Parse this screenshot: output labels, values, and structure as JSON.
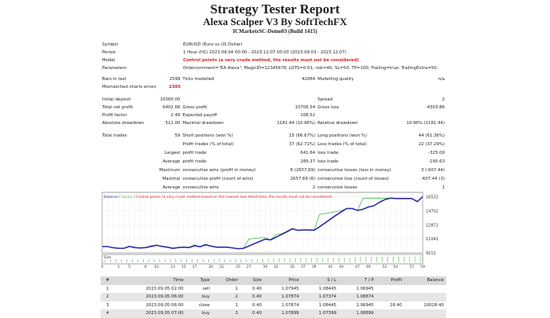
{
  "header": {
    "title": "Strategy Tester Report",
    "subtitle": "Alexa Scalper V3 By SoftTechFX",
    "server": "ICMarketsSC-Demo03 (Build 1415)"
  },
  "info": {
    "symbol_label": "Symbol",
    "symbol": "EURUSD (Euro vs US Dollar)",
    "period_label": "Period",
    "period": "1 Hour (H1) 2023.09.04 00:00 - 2023.12.07 00:00 (2023.09.03 - 2023.12.07)",
    "model_label": "Model",
    "model": "Control points (a very crude method, the results must not be considered)",
    "params_label": "Parameters",
    "params": "Ordercomment=\"EA Alexa\"; MagicID=12345678; LOTS=0.01; risk=40; SL=50; TP=100; Trailing=true; TrailingExtra=50;",
    "bars_label": "Bars in test",
    "bars": "2599",
    "ticks_label": "Ticks modelled",
    "ticks": "42064",
    "quality_label": "Modelling quality",
    "quality": "n/a",
    "mismatch_label": "Mismatched charts errors",
    "mismatch": "2385"
  },
  "stats": [
    [
      "Initial deposit",
      "10000.00",
      "",
      "",
      "Spread",
      "2"
    ],
    [
      "Total net profit",
      "6402.68",
      "Gross profit",
      "10706.54",
      "Gross loss",
      "-4303.86"
    ],
    [
      "Profit factor",
      "2.49",
      "Expected payoff",
      "108.52",
      "",
      ""
    ],
    [
      "Absolute drawdown",
      "512.00",
      "Maximal drawdown",
      "1181.44 (10.96%)",
      "Relative drawdown",
      "10.96% (1181.44)"
    ],
    [
      "Total trades",
      "59",
      "Short positions (won %)",
      "15 (66.67%)",
      "Long positions (won %)",
      "44 (61.36%)"
    ],
    [
      "",
      "",
      "Profit trades (% of total)",
      "37 (62.71%)",
      "Loss trades (% of total)",
      "22 (37.29%)"
    ],
    [
      "",
      "Largest",
      "profit trade",
      "641.64",
      "loss trade",
      "-325.00"
    ],
    [
      "",
      "Average",
      "profit trade",
      "289.37",
      "loss trade",
      "-195.63"
    ],
    [
      "",
      "Maximum",
      "consecutive wins (profit in money)",
      "6 (2657.69)",
      "consecutive losses (loss in money)",
      "3 (-607.44)"
    ],
    [
      "",
      "Maximal",
      "consecutive profit (count of wins)",
      "2657.69 (6)",
      "consecutive loss (count of losses)",
      "-607.44 (3)"
    ],
    [
      "",
      "Average",
      "consecutive wins",
      "2",
      "consecutive losses",
      "1"
    ]
  ],
  "chart_data": {
    "type": "line",
    "legend": {
      "balance": "Balance",
      "equity": "Equity",
      "note": "Control points (a very crude method based on the nearest less timeframe, the results must not be considered)"
    },
    "colors": {
      "balance": "#2a2ab0",
      "equity": "#5cc05c",
      "note": "#e02020",
      "size": "#5cc05c"
    },
    "yticks": [
      9211,
      11041,
      12872,
      14702,
      16532
    ],
    "ylim": [
      9211,
      16900
    ],
    "xticks": [
      "0",
      "3",
      "5",
      "8",
      "10",
      "13",
      "15",
      "17",
      "20",
      "22",
      "25",
      "27",
      "30",
      "32",
      "35",
      "37",
      "39",
      "42",
      "44",
      "47",
      "49",
      "52",
      "54",
      "57",
      "59"
    ],
    "xlim": [
      0,
      59
    ],
    "size_label": "Size",
    "balance": [
      10030,
      10030,
      9880,
      9800,
      9800,
      10050,
      9900,
      9850,
      9900,
      10050,
      10200,
      10050,
      9950,
      9800,
      9900,
      9950,
      9900,
      10150,
      10000,
      10250,
      10100,
      9950,
      9950,
      9950,
      9850,
      9750,
      9800,
      10100,
      10400,
      10700,
      11000,
      10900,
      11250,
      11600,
      11950,
      12350,
      12150,
      12200,
      12200,
      12150,
      12600,
      13100,
      13600,
      14100,
      14550,
      15000,
      15000,
      14750,
      14900,
      15200,
      15350,
      15800,
      16150,
      16350,
      16300,
      16300,
      16300,
      16300,
      15900,
      16550
    ],
    "equity": [
      10030,
      10030,
      9880,
      9800,
      9800,
      10050,
      9900,
      9850,
      9900,
      10150,
      10200,
      10050,
      9950,
      9800,
      9900,
      9950,
      9900,
      10250,
      10000,
      10350,
      10100,
      9950,
      9950,
      9950,
      9850,
      9750,
      9800,
      11000,
      11100,
      11150,
      11200,
      10900,
      11600,
      11700,
      12050,
      12400,
      12150,
      12200,
      12200,
      12150,
      14200,
      14350,
      14450,
      14600,
      14700,
      15000,
      15000,
      14750,
      16350,
      16350,
      16350,
      16350,
      16350,
      16350,
      16300,
      16300,
      16300,
      16300,
      15900,
      16550
    ],
    "sizes": [
      0.4,
      0.4,
      0.4,
      0.4,
      0.4,
      0.4,
      0.4,
      0.4,
      0.4,
      0.4,
      0.4,
      0.4,
      0.4,
      0.4,
      0.4,
      0.4,
      0.4,
      0.4,
      0.4,
      0.4,
      0.4,
      0.4,
      0.4,
      0.4,
      0.4,
      0.4,
      0.4,
      0.4,
      0.4,
      0.45,
      0.45,
      0.45,
      0.5,
      0.5,
      0.5,
      0.55,
      0.55,
      0.55,
      0.55,
      0.55,
      0.55,
      0.55,
      0.55,
      0.55,
      0.55,
      0.55,
      0.7,
      0.7,
      0.7,
      0.7,
      0.7,
      0.7,
      0.7,
      0.7,
      0.7,
      0.7,
      0.75,
      0.75,
      0.75
    ]
  },
  "trades": {
    "columns": [
      "#",
      "Time",
      "Type",
      "Order",
      "Size",
      "Price",
      "S / L",
      "T / P",
      "Profit",
      "Balance"
    ],
    "rows": [
      [
        "1",
        "2023.09.05 02:00",
        "sell",
        "1",
        "0.40",
        "1.07945",
        "1.08445",
        "1.06945",
        "",
        ""
      ],
      [
        "2",
        "2023.09.05 06:00",
        "buy",
        "2",
        "0.40",
        "1.07874",
        "1.07374",
        "1.08874",
        "",
        ""
      ],
      [
        "3",
        "2023.09.05 06:00",
        "close",
        "1",
        "0.40",
        "1.07874",
        "1.08445",
        "1.06945",
        "28.40",
        "10028.40"
      ],
      [
        "4",
        "2023.09.05 07:00",
        "buy",
        "3",
        "0.40",
        "1.07899",
        "1.07399",
        "1.08899",
        "",
        ""
      ]
    ]
  }
}
